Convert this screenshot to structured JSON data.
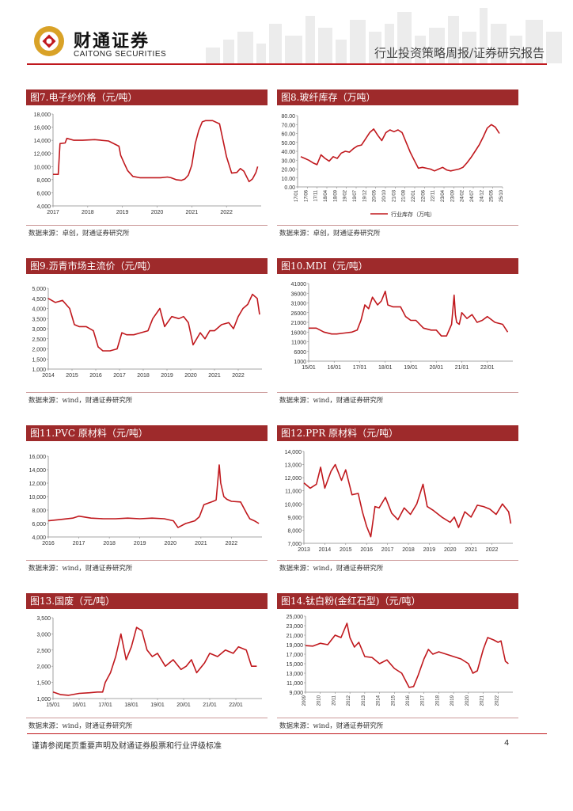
{
  "header": {
    "brand_cn": "财通证券",
    "brand_en": "CAITONG SECURITIES",
    "report_type": "行业投资策略周报/证券研究报告"
  },
  "footer": {
    "disclaimer": "谨请参阅尾页重要声明及财通证券股票和行业评级标准",
    "page_number": "4"
  },
  "colors": {
    "accent": "#9e2a2b",
    "line": "#c0181d"
  },
  "figures": [
    {
      "title": "图7.电子纱价格（元/吨）",
      "source": "数据来源：卓创，财通证券研究所"
    },
    {
      "title": "图8.玻纤库存（万吨）",
      "source": "数据来源：卓创，财通证券研究所",
      "legend": "行业库存（万吨）"
    },
    {
      "title": "图9.沥青市场主流价（元/吨）",
      "source": "数据来源：wind，财通证券研究所"
    },
    {
      "title": "图10.MDI（元/吨）",
      "source": "数据来源：wind，财通证券研究所"
    },
    {
      "title": "图11.PVC 原材料（元/吨）",
      "source": "数据来源：wind，财通证券研究所"
    },
    {
      "title": "图12.PPR 原材料（元/吨）",
      "source": "数据来源：wind，财通证券研究所"
    },
    {
      "title": "图13.国废（元/吨）",
      "source": "数据来源：wind，财通证券研究所"
    },
    {
      "title": "图14.钛白粉(金红石型)（元/吨）",
      "source": "数据来源：wind，财通证券研究所"
    }
  ],
  "chart_data": [
    {
      "id": "c7",
      "type": "line",
      "title": "图7.电子纱价格（元/吨）",
      "ylim": [
        4000,
        18000
      ],
      "yticks": [
        "4,000",
        "6,000",
        "8,000",
        "10,000",
        "12,000",
        "14,000",
        "16,000",
        "18,000"
      ],
      "xticks": [
        "2017",
        "2018",
        "2019",
        "2020",
        "2021",
        "2022"
      ],
      "xlim": [
        2017,
        2023
      ],
      "x": [
        2017.0,
        2017.15,
        2017.2,
        2017.35,
        2017.4,
        2017.6,
        2017.85,
        2018.2,
        2018.6,
        2018.9,
        2018.95,
        2019.05,
        2019.15,
        2019.3,
        2019.5,
        2019.9,
        2020.1,
        2020.3,
        2020.4,
        2020.55,
        2020.7,
        2020.8,
        2020.9,
        2021.0,
        2021.1,
        2021.2,
        2021.3,
        2021.4,
        2021.6,
        2021.8,
        2021.9,
        2022.0,
        2022.15,
        2022.3,
        2022.4,
        2022.5,
        2022.65,
        2022.75,
        2022.85,
        2022.9
      ],
      "y": [
        8800,
        8800,
        13500,
        13600,
        14300,
        14000,
        14000,
        14100,
        13900,
        13100,
        11700,
        10500,
        9400,
        8500,
        8300,
        8300,
        8300,
        8400,
        8300,
        8000,
        7900,
        8100,
        8700,
        10200,
        13500,
        15500,
        16800,
        17000,
        17000,
        16500,
        14000,
        11500,
        9000,
        9100,
        9700,
        9300,
        7700,
        8100,
        9100,
        10000
      ]
    },
    {
      "id": "c8",
      "type": "line",
      "title": "图8.玻纤库存（万吨）",
      "ylim": [
        0,
        80
      ],
      "yticks": [
        "0.00",
        "10.00",
        "20.00",
        "30.00",
        "40.00",
        "50.00",
        "60.00",
        "70.00",
        "80.00"
      ],
      "xticks": [
        "17/01",
        "17/06",
        "17/11",
        "18/04",
        "18/09",
        "19/02",
        "19/07",
        "19/12",
        "20/05",
        "20/10",
        "21/03",
        "21/08",
        "22/01",
        "22/06",
        "22/11",
        "23/04",
        "23/09",
        "24/02",
        "24/07",
        "24/12",
        "25/05",
        "25/10"
      ],
      "series": [
        {
          "name": "行业库存（万吨）",
          "values": [
            34,
            32,
            30,
            27,
            25,
            36,
            32,
            29,
            34,
            32,
            38,
            40,
            39,
            43,
            46,
            47,
            54,
            61,
            65,
            58,
            52,
            61,
            64,
            62,
            64,
            61,
            50,
            39,
            30,
            21,
            22,
            21,
            20,
            18,
            20,
            22,
            19,
            18,
            19,
            20,
            22,
            27,
            33,
            40,
            47,
            56,
            66,
            70,
            67,
            60
          ]
        }
      ]
    },
    {
      "id": "c9",
      "type": "line",
      "title": "图9.沥青市场主流价（元/吨）",
      "ylim": [
        1000,
        5000
      ],
      "yticks": [
        "1,000",
        "1,500",
        "2,000",
        "2,500",
        "3,000",
        "3,500",
        "4,000",
        "4,500",
        "5,000"
      ],
      "xticks": [
        "2014",
        "2015",
        "2016",
        "2017",
        "2018",
        "2019",
        "2020",
        "2021",
        "2022"
      ],
      "xlim": [
        2014,
        2023
      ],
      "x": [
        2014.0,
        2014.3,
        2014.6,
        2014.9,
        2015.1,
        2015.3,
        2015.6,
        2015.9,
        2016.1,
        2016.3,
        2016.6,
        2016.9,
        2017.1,
        2017.3,
        2017.6,
        2017.9,
        2018.2,
        2018.4,
        2018.7,
        2018.9,
        2019.2,
        2019.5,
        2019.7,
        2019.9,
        2020.1,
        2020.25,
        2020.4,
        2020.6,
        2020.8,
        2021.0,
        2021.3,
        2021.6,
        2021.8,
        2022.0,
        2022.2,
        2022.4,
        2022.6,
        2022.8,
        2022.9
      ],
      "y": [
        4500,
        4300,
        4400,
        4000,
        3200,
        3100,
        3100,
        2900,
        2100,
        1900,
        1900,
        2000,
        2800,
        2700,
        2700,
        2800,
        2900,
        3500,
        4000,
        3100,
        3600,
        3500,
        3600,
        3300,
        2200,
        2500,
        2800,
        2500,
        2900,
        2900,
        3200,
        3300,
        3000,
        3600,
        4000,
        4200,
        4700,
        4500,
        3700
      ]
    },
    {
      "id": "c10",
      "type": "line",
      "title": "图10.MDI（元/吨）",
      "ylim": [
        1000,
        41000
      ],
      "yticks": [
        "1000",
        "6000",
        "11000",
        "16000",
        "21000",
        "26000",
        "31000",
        "36000",
        "41000"
      ],
      "xticks": [
        "15/01",
        "16/01",
        "17/01",
        "18/01",
        "19/01",
        "20/01",
        "21/01",
        "22/01"
      ],
      "xlim": [
        2015,
        2023
      ],
      "x": [
        2015.0,
        2015.3,
        2015.6,
        2015.9,
        2016.1,
        2016.4,
        2016.7,
        2016.9,
        2017.05,
        2017.2,
        2017.35,
        2017.5,
        2017.7,
        2017.85,
        2018.0,
        2018.1,
        2018.3,
        2018.6,
        2018.8,
        2019.0,
        2019.2,
        2019.5,
        2019.8,
        2020.0,
        2020.2,
        2020.4,
        2020.6,
        2020.7,
        2020.75,
        2020.8,
        2020.9,
        2021.0,
        2021.2,
        2021.4,
        2021.6,
        2021.8,
        2022.0,
        2022.3,
        2022.6,
        2022.8
      ],
      "y": [
        18000,
        18000,
        16000,
        15000,
        15000,
        15500,
        16000,
        17000,
        22000,
        30000,
        28000,
        34000,
        30000,
        32000,
        37000,
        30000,
        29000,
        29000,
        24000,
        22000,
        22000,
        18000,
        17000,
        17000,
        14000,
        14000,
        20000,
        35000,
        25000,
        21000,
        20000,
        26000,
        23000,
        25000,
        21000,
        22000,
        24000,
        21000,
        20000,
        16000
      ]
    },
    {
      "id": "c11",
      "type": "line",
      "title": "图11.PVC 原材料（元/吨）",
      "ylim": [
        4000,
        16000
      ],
      "yticks": [
        "4,000",
        "6,000",
        "8,000",
        "10,000",
        "12,000",
        "14,000",
        "16,000"
      ],
      "xticks": [
        "2016",
        "2017",
        "2018",
        "2019",
        "2020",
        "2021",
        "2022"
      ],
      "xlim": [
        2016,
        2023
      ],
      "x": [
        2016.0,
        2016.4,
        2016.8,
        2017.0,
        2017.4,
        2017.8,
        2018.2,
        2018.6,
        2019.0,
        2019.4,
        2019.8,
        2020.1,
        2020.25,
        2020.5,
        2020.8,
        2020.95,
        2021.1,
        2021.4,
        2021.5,
        2021.6,
        2021.65,
        2021.75,
        2021.85,
        2022.0,
        2022.3,
        2022.5,
        2022.6,
        2022.75,
        2022.9
      ],
      "y": [
        6400,
        6600,
        6800,
        7100,
        6800,
        6700,
        6700,
        6800,
        6700,
        6800,
        6700,
        6400,
        5400,
        6000,
        6400,
        7000,
        8800,
        9300,
        9500,
        14700,
        12000,
        10000,
        9600,
        9300,
        9200,
        7500,
        6700,
        6400,
        6000
      ]
    },
    {
      "id": "c12",
      "type": "line",
      "title": "图12.PPR 原材料（元/吨）",
      "ylim": [
        7000,
        14000
      ],
      "yticks": [
        "7,000",
        "8,000",
        "9,000",
        "10,000",
        "11,000",
        "12,000",
        "13,000",
        "14,000"
      ],
      "xticks": [
        "2013",
        "2014",
        "2015",
        "2016",
        "2017",
        "2018",
        "2019",
        "2020",
        "2021",
        "2022"
      ],
      "xlim": [
        2013,
        2023
      ],
      "x": [
        2013.0,
        2013.3,
        2013.6,
        2013.8,
        2014.0,
        2014.3,
        2014.5,
        2014.8,
        2015.0,
        2015.3,
        2015.6,
        2015.8,
        2016.0,
        2016.2,
        2016.4,
        2016.6,
        2016.9,
        2017.2,
        2017.5,
        2017.8,
        2018.1,
        2018.4,
        2018.7,
        2018.9,
        2019.2,
        2019.6,
        2020.0,
        2020.2,
        2020.4,
        2020.7,
        2021.0,
        2021.3,
        2021.6,
        2021.9,
        2022.2,
        2022.5,
        2022.8,
        2022.9
      ],
      "y": [
        11600,
        11200,
        11500,
        12800,
        11200,
        12500,
        13000,
        11800,
        12600,
        10700,
        10800,
        9400,
        8300,
        7500,
        9800,
        9700,
        10500,
        9300,
        8800,
        9700,
        9200,
        10000,
        11500,
        9800,
        9500,
        9000,
        8600,
        9000,
        8200,
        9400,
        9000,
        9900,
        9800,
        9600,
        9200,
        10000,
        9400,
        8500
      ]
    },
    {
      "id": "c13",
      "type": "line",
      "title": "图13.国废（元/吨）",
      "ylim": [
        1000,
        3500
      ],
      "yticks": [
        "1,000",
        "1,500",
        "2,000",
        "2,500",
        "3,000",
        "3,500"
      ],
      "xticks": [
        "15/01",
        "16/01",
        "17/01",
        "18/01",
        "19/01",
        "20/01",
        "21/01",
        "22/01"
      ],
      "xlim": [
        2015,
        2023
      ],
      "x": [
        2015.0,
        2015.3,
        2015.6,
        2016.0,
        2016.4,
        2016.7,
        2016.9,
        2017.0,
        2017.2,
        2017.4,
        2017.6,
        2017.8,
        2018.0,
        2018.2,
        2018.4,
        2018.6,
        2018.8,
        2019.0,
        2019.3,
        2019.6,
        2019.9,
        2020.1,
        2020.3,
        2020.5,
        2020.8,
        2021.0,
        2021.3,
        2021.6,
        2021.9,
        2022.1,
        2022.4,
        2022.6,
        2022.8
      ],
      "y": [
        1200,
        1120,
        1100,
        1160,
        1180,
        1200,
        1200,
        1500,
        1800,
        2300,
        3000,
        2200,
        2600,
        3200,
        3100,
        2500,
        2300,
        2400,
        2000,
        2200,
        1900,
        2000,
        2200,
        1800,
        2100,
        2400,
        2300,
        2500,
        2400,
        2600,
        2500,
        2000,
        2000
      ]
    },
    {
      "id": "c14",
      "type": "line",
      "title": "图14.钛白粉(金红石型)（元/吨）",
      "ylim": [
        9000,
        25000
      ],
      "yticks": [
        "9,000",
        "11,000",
        "13,000",
        "15,000",
        "17,000",
        "19,000",
        "21,000",
        "23,000",
        "25,000"
      ],
      "xticks": [
        "2009",
        "2010",
        "2011",
        "2012",
        "2013",
        "2014",
        "2015",
        "2016",
        "2017",
        "2018",
        "2019",
        "2020",
        "2021",
        "2022"
      ],
      "xlim": [
        2009,
        2023
      ],
      "x": [
        2009.0,
        2009.5,
        2010.0,
        2010.5,
        2011.0,
        2011.4,
        2011.8,
        2012.0,
        2012.3,
        2012.6,
        2013.0,
        2013.5,
        2014.0,
        2014.5,
        2015.0,
        2015.5,
        2016.0,
        2016.3,
        2016.6,
        2017.0,
        2017.3,
        2017.6,
        2018.0,
        2018.5,
        2019.0,
        2019.5,
        2020.0,
        2020.3,
        2020.6,
        2021.0,
        2021.3,
        2021.7,
        2022.0,
        2022.2,
        2022.5,
        2022.7
      ],
      "y": [
        18800,
        18700,
        19300,
        19000,
        21000,
        20500,
        23500,
        20500,
        18500,
        19500,
        16500,
        16300,
        15000,
        15800,
        14000,
        13000,
        10000,
        10200,
        12500,
        16000,
        18000,
        17000,
        17500,
        17000,
        16500,
        16000,
        15000,
        13000,
        13500,
        18000,
        20500,
        20000,
        19500,
        19800,
        15500,
        15000
      ]
    }
  ]
}
